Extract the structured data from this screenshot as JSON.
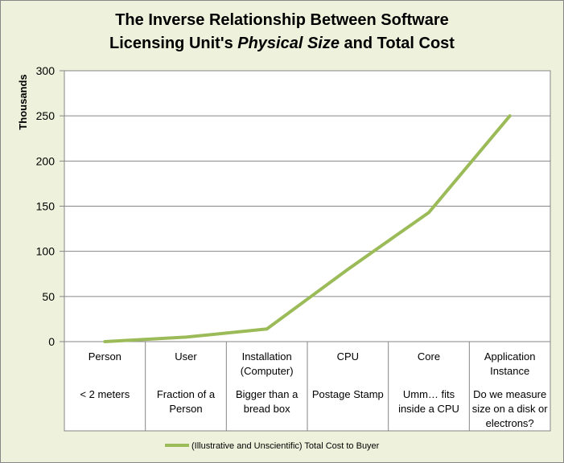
{
  "chart_data": {
    "type": "line",
    "title_line1": "The Inverse Relationship Between Software",
    "title_line2_prefix": "Licensing Unit's ",
    "title_line2_italic": "Physical Size",
    "title_line2_suffix": " and Total Cost",
    "ylabel": "Thousands",
    "xlabel": "",
    "ylim": [
      0,
      300
    ],
    "yticks": [
      0,
      50,
      100,
      150,
      200,
      250,
      300
    ],
    "grid": true,
    "categories": [
      {
        "name": [
          "Person"
        ],
        "note": [
          "< 2 meters"
        ]
      },
      {
        "name": [
          "User"
        ],
        "note": [
          "Fraction of a",
          "Person"
        ]
      },
      {
        "name": [
          "Installation",
          "(Computer)"
        ],
        "note": [
          "Bigger than a",
          "bread box"
        ]
      },
      {
        "name": [
          "CPU"
        ],
        "note": [
          "Postage Stamp"
        ]
      },
      {
        "name": [
          "Core"
        ],
        "note": [
          "Umm… fits",
          "inside a CPU"
        ]
      },
      {
        "name": [
          "Application",
          "Instance"
        ],
        "note": [
          "Do we measure",
          "size on a  disk or",
          "electrons?"
        ]
      }
    ],
    "series": [
      {
        "name": "(Illustrative and Unscientific) Total Cost to Buyer",
        "values": [
          0,
          5,
          14,
          80,
          143,
          250
        ]
      }
    ],
    "legend_position": "bottom",
    "colors": {
      "series": "#9bbb59",
      "grid": "#868686",
      "axis": "#868686",
      "plot_bg": "#ffffff",
      "frame_bg": "#eef2dc"
    }
  }
}
